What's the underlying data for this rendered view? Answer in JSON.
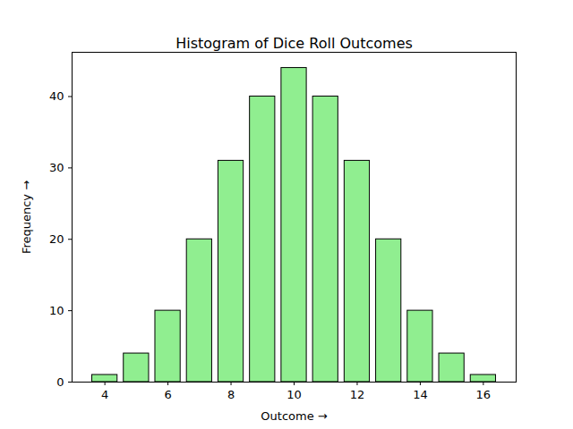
{
  "chart_data": {
    "type": "histogram",
    "title": "Histogram of Dice Roll Outcomes",
    "x_label": "Outcome",
    "y_label": "Frequency",
    "bins": [
      3.5,
      4.5,
      5.5,
      6.5,
      7.5,
      8.5,
      9.5,
      10.5,
      11.5,
      12.5,
      13.5,
      14.5,
      15.5,
      16.5
    ],
    "values": [
      1,
      4,
      10,
      20,
      31,
      40,
      44,
      40,
      31,
      20,
      10,
      4,
      1
    ],
    "color": "#90ee90",
    "xlim": [
      2.96,
      17.04
    ],
    "xticks": [
      4,
      6,
      8,
      10,
      12,
      14,
      16
    ],
    "ylim": [
      0,
      46.2
    ],
    "yticks": [
      0,
      10,
      20,
      30,
      40
    ],
    "grid": false
  }
}
